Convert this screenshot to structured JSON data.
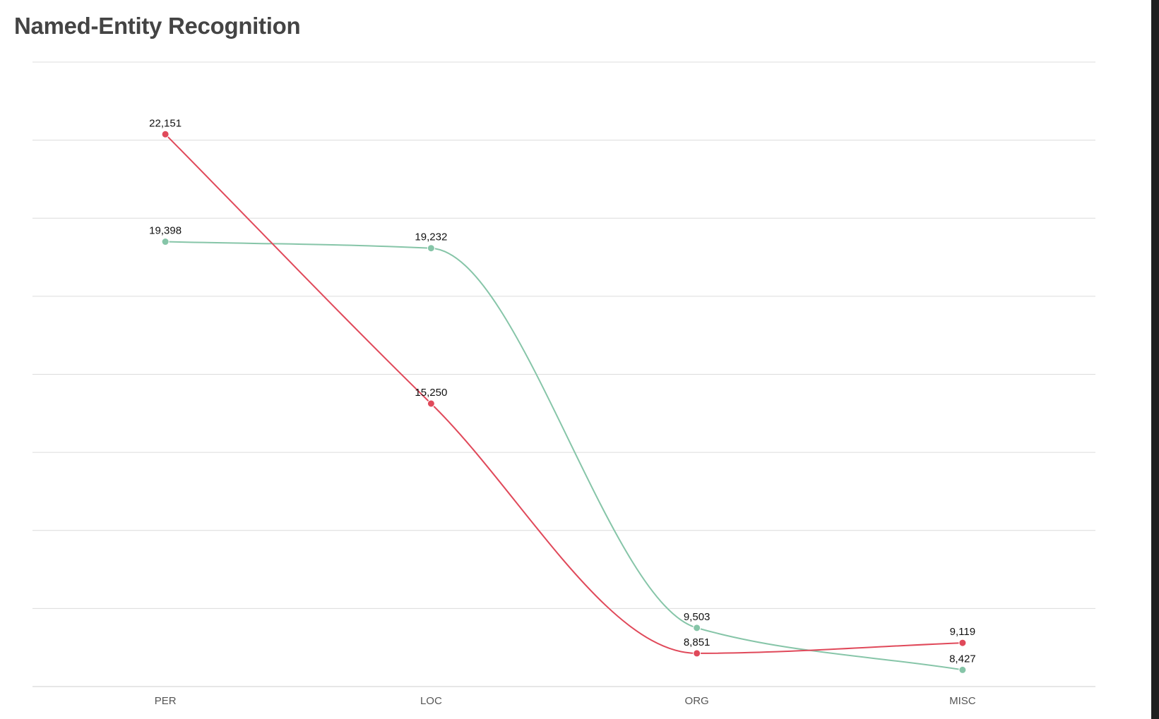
{
  "chart_data": {
    "type": "line",
    "title": "Named-Entity Recognition",
    "categories": [
      "PER",
      "LOC",
      "ORG",
      "MISC"
    ],
    "series": [
      {
        "color": "#e0495a",
        "values": [
          22151,
          15250,
          8851,
          9119
        ],
        "labels": [
          "22,151",
          "15,250",
          "8,851",
          "9,119"
        ]
      },
      {
        "color": "#86c5a8",
        "values": [
          19398,
          19232,
          9503,
          8427
        ],
        "labels": [
          "19,398",
          "19,232",
          "9,503",
          "8,427"
        ]
      }
    ],
    "ylim": [
      8000,
      24000
    ],
    "grid": true,
    "smooth": true,
    "legend": "none",
    "xlabel": "",
    "ylabel": ""
  }
}
